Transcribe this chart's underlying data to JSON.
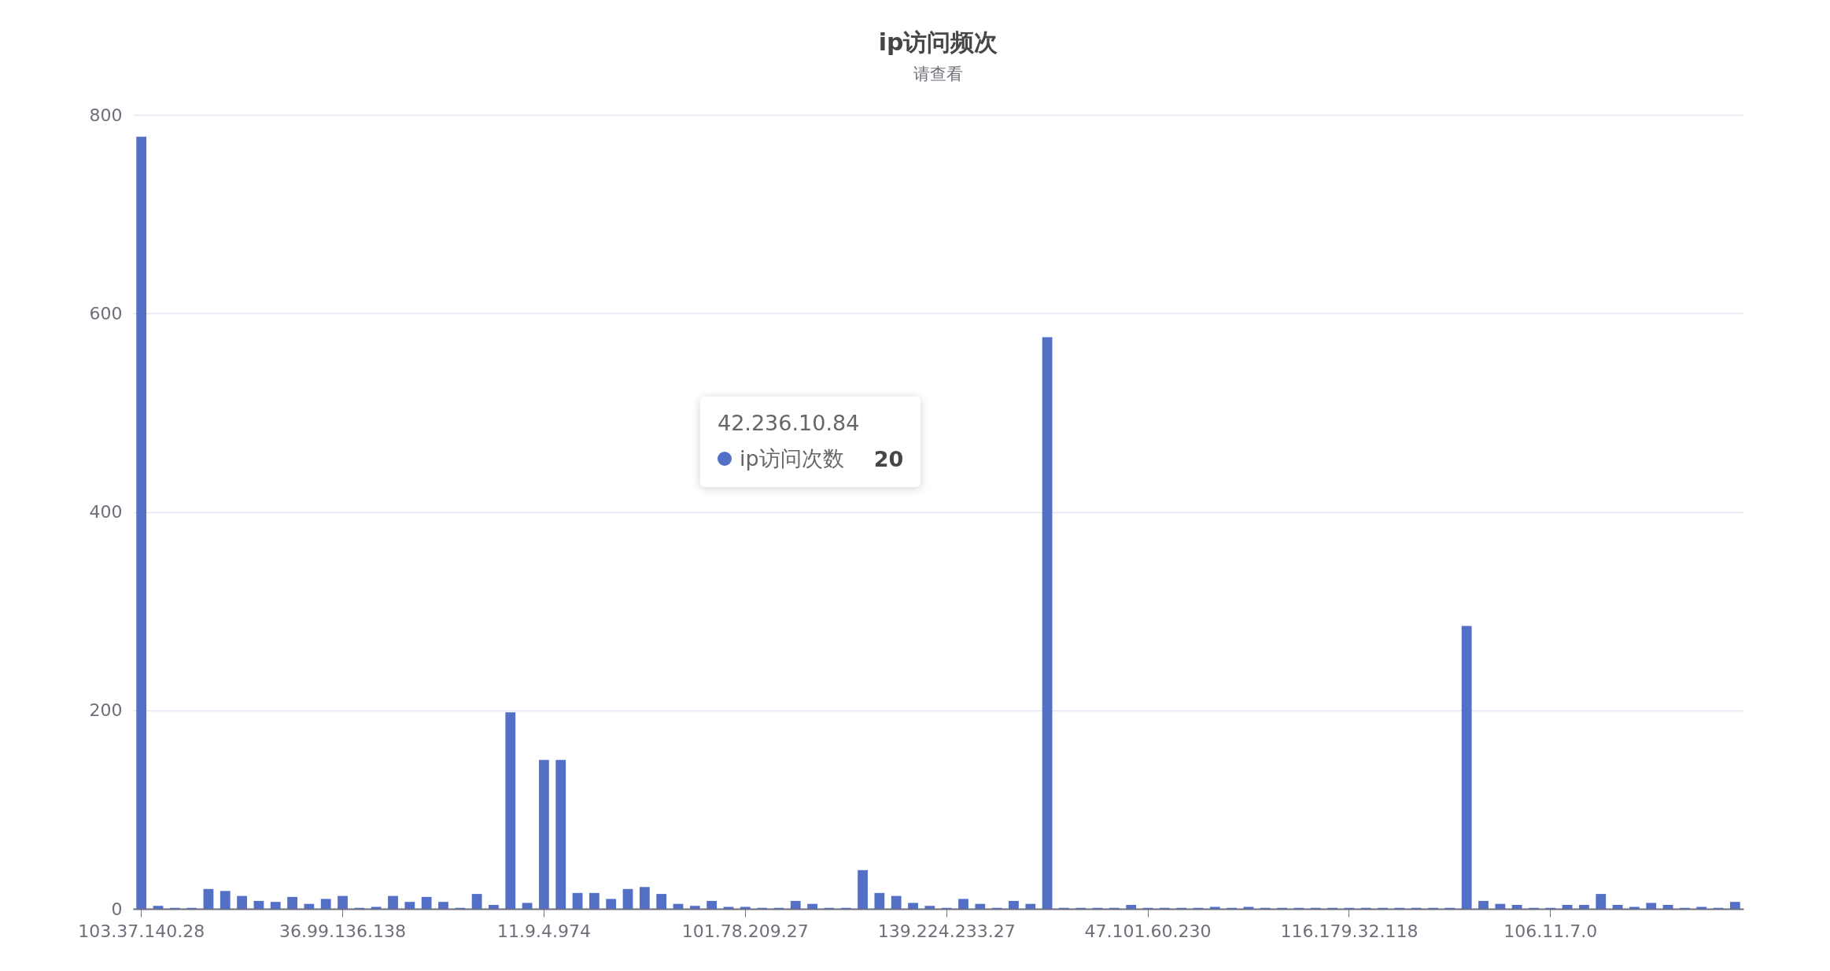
{
  "chart_data": {
    "type": "bar",
    "title": "ip访问频次",
    "subtitle": "请查看",
    "categories": [
      "103.37.140.28",
      null,
      null,
      null,
      null,
      null,
      null,
      null,
      null,
      null,
      null,
      null,
      "36.99.136.138",
      null,
      null,
      null,
      null,
      null,
      null,
      null,
      null,
      null,
      null,
      null,
      "11.9.4.974",
      null,
      null,
      null,
      null,
      null,
      null,
      null,
      null,
      null,
      null,
      null,
      "101.78.209.27",
      null,
      null,
      null,
      null,
      null,
      null,
      null,
      null,
      null,
      null,
      null,
      "139.224.233.27",
      null,
      null,
      null,
      null,
      null,
      null,
      null,
      null,
      null,
      null,
      null,
      "47.101.60.230",
      null,
      null,
      null,
      null,
      null,
      null,
      null,
      null,
      null,
      null,
      null,
      "116.179.32.118",
      null,
      null,
      null,
      null,
      null,
      null,
      null,
      null,
      null,
      null,
      null,
      "106.11.7.0",
      null,
      null,
      null,
      null,
      null,
      null,
      null,
      null,
      null,
      null,
      null
    ],
    "series": [
      {
        "name": "ip访问次数",
        "color": "#5470c6",
        "values": [
          778,
          3,
          1,
          1,
          20,
          18,
          13,
          8,
          7,
          12,
          5,
          10,
          13,
          1,
          2,
          13,
          7,
          12,
          7,
          1,
          15,
          4,
          198,
          6,
          150,
          150,
          16,
          16,
          10,
          20,
          22,
          15,
          5,
          3,
          8,
          2,
          2,
          1,
          1,
          8,
          5,
          1,
          1,
          39,
          16,
          13,
          6,
          3,
          1,
          10,
          5,
          1,
          8,
          5,
          576,
          1,
          1,
          1,
          1,
          4,
          1,
          1,
          1,
          1,
          2,
          1,
          2,
          1,
          1,
          1,
          1,
          1,
          1,
          1,
          1,
          1,
          1,
          1,
          1,
          285,
          8,
          5,
          4,
          1,
          1,
          4,
          4,
          15,
          4,
          2,
          6,
          4,
          1,
          2,
          1,
          7
        ]
      }
    ],
    "ylim": [
      0,
      800
    ],
    "yticks": [
      0,
      200,
      400,
      600,
      800
    ],
    "grid": "y",
    "annotations": [
      "42.236.10.84",
      "20"
    ]
  }
}
